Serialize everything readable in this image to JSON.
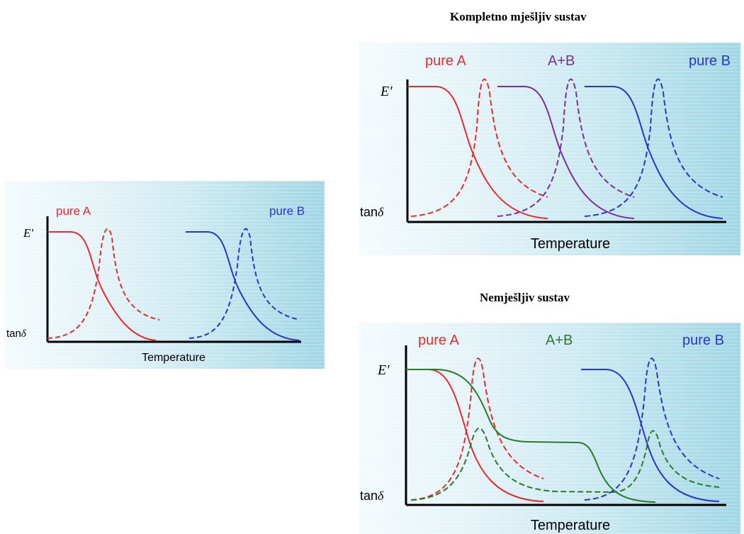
{
  "headings": {
    "miscible": "Kompletno mješljiv sustav",
    "immiscible": "Nemješljiv sustav"
  },
  "common": {
    "e_prime": "E'",
    "tan": "tan",
    "delta": "δ",
    "xlabel": "Temperature"
  },
  "panels": {
    "left": {
      "labels": {
        "a": "pure A",
        "b": "pure B"
      }
    },
    "top_right": {
      "labels": {
        "a": "pure A",
        "ab": "A+B",
        "b": "pure B"
      }
    },
    "bottom_right": {
      "labels": {
        "a": "pure A",
        "ab": "A+B",
        "b": "pure B"
      }
    }
  },
  "colors": {
    "pure_a": "#e32c2f",
    "pure_b": "#2b35c7",
    "ab_miscible": "#7a2ea0",
    "ab_immiscible": "#2a7a2a",
    "axis": "#000000"
  }
}
